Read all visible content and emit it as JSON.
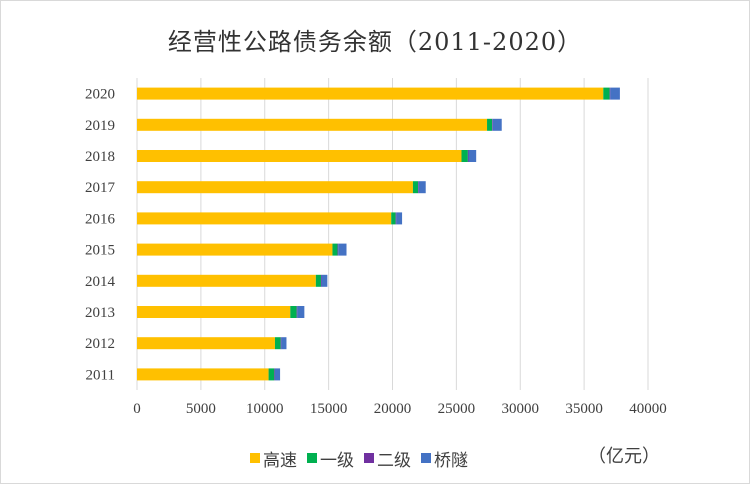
{
  "chart_data": {
    "type": "bar",
    "orientation": "horizontal",
    "stacked": true,
    "title": "经营性公路债务余额（2011-2020）",
    "unit_label": "（亿元）",
    "categories": [
      "2011",
      "2012",
      "2013",
      "2014",
      "2015",
      "2016",
      "2017",
      "2018",
      "2019",
      "2020"
    ],
    "series": [
      {
        "name": "高速",
        "color": "#FFC000",
        "values": [
          10300,
          10800,
          12000,
          14000,
          15300,
          19900,
          21600,
          25400,
          27400,
          36500
        ]
      },
      {
        "name": "一级",
        "color": "#00B050",
        "values": [
          450,
          450,
          500,
          400,
          400,
          350,
          400,
          500,
          400,
          500
        ]
      },
      {
        "name": "二级",
        "color": "#7030A0",
        "values": [
          50,
          50,
          50,
          50,
          50,
          50,
          50,
          50,
          50,
          50
        ]
      },
      {
        "name": "桥隧",
        "color": "#4472C4",
        "values": [
          400,
          400,
          550,
          450,
          650,
          450,
          550,
          600,
          700,
          750
        ]
      }
    ],
    "xlim": [
      0,
      40000
    ],
    "xticks": [
      "0",
      "5000",
      "10000",
      "15000",
      "20000",
      "25000",
      "30000",
      "35000",
      "40000"
    ],
    "grid": true,
    "legend_position": "bottom"
  }
}
